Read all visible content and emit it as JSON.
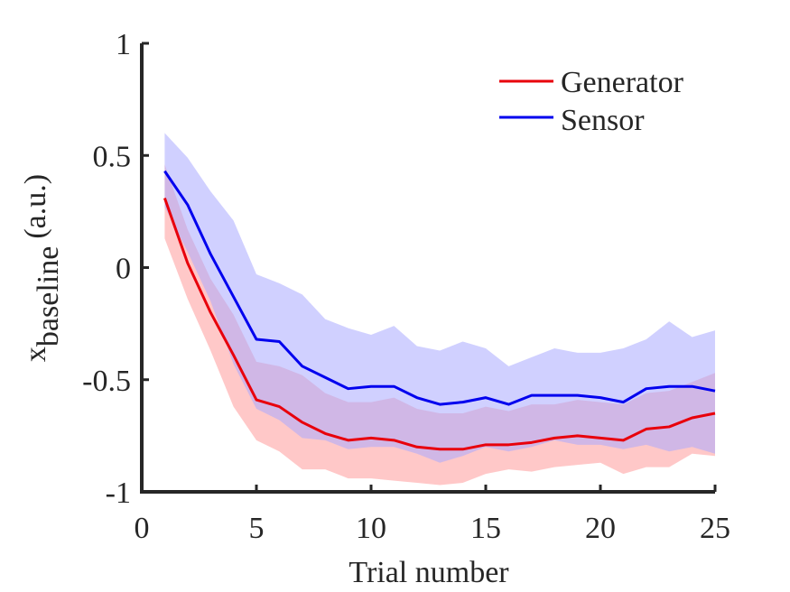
{
  "chart_data": {
    "type": "line",
    "xlabel": "Trial number",
    "ylabel_main": "x",
    "ylabel_sub": "baseline",
    "ylabel_unit": "(a.u.)",
    "xlim": [
      0,
      25
    ],
    "ylim": [
      -1,
      1
    ],
    "xticks": [
      0,
      5,
      10,
      15,
      20,
      25
    ],
    "yticks": [
      -1,
      -0.5,
      0,
      0.5,
      1
    ],
    "xtick_labels": [
      "0",
      "5",
      "10",
      "15",
      "20",
      "25"
    ],
    "ytick_labels": [
      "-1",
      "-0.5",
      "0",
      "0.5",
      "1"
    ],
    "grid": false,
    "legend_position": "top-right",
    "x": [
      1,
      2,
      3,
      4,
      5,
      6,
      7,
      8,
      9,
      10,
      11,
      12,
      13,
      14,
      15,
      16,
      17,
      18,
      19,
      20,
      21,
      22,
      23,
      24,
      25
    ],
    "series": [
      {
        "name": "Generator",
        "color": "#e8000b",
        "band_color": "#ff9a9a",
        "values": [
          0.31,
          0.02,
          -0.2,
          -0.39,
          -0.59,
          -0.62,
          -0.69,
          -0.74,
          -0.77,
          -0.76,
          -0.77,
          -0.8,
          -0.81,
          -0.81,
          -0.79,
          -0.79,
          -0.78,
          -0.76,
          -0.75,
          -0.76,
          -0.77,
          -0.72,
          -0.71,
          -0.67,
          -0.65
        ],
        "upper": [
          0.46,
          0.17,
          -0.05,
          -0.21,
          -0.42,
          -0.44,
          -0.48,
          -0.56,
          -0.6,
          -0.6,
          -0.58,
          -0.63,
          -0.65,
          -0.65,
          -0.62,
          -0.64,
          -0.61,
          -0.61,
          -0.59,
          -0.6,
          -0.61,
          -0.56,
          -0.55,
          -0.51,
          -0.47
        ],
        "lower": [
          0.13,
          -0.14,
          -0.37,
          -0.62,
          -0.77,
          -0.82,
          -0.9,
          -0.9,
          -0.94,
          -0.94,
          -0.95,
          -0.96,
          -0.97,
          -0.96,
          -0.92,
          -0.9,
          -0.91,
          -0.89,
          -0.88,
          -0.87,
          -0.92,
          -0.89,
          -0.89,
          -0.83,
          -0.84
        ]
      },
      {
        "name": "Sensor",
        "color": "#0000ee",
        "band_color": "#aaaaff",
        "values": [
          0.43,
          0.28,
          0.06,
          -0.13,
          -0.32,
          -0.33,
          -0.44,
          -0.49,
          -0.54,
          -0.53,
          -0.53,
          -0.58,
          -0.61,
          -0.6,
          -0.58,
          -0.61,
          -0.57,
          -0.57,
          -0.57,
          -0.58,
          -0.6,
          -0.54,
          -0.53,
          -0.53,
          -0.55
        ],
        "upper": [
          0.6,
          0.49,
          0.34,
          0.21,
          -0.03,
          -0.07,
          -0.12,
          -0.23,
          -0.27,
          -0.3,
          -0.26,
          -0.35,
          -0.37,
          -0.33,
          -0.36,
          -0.44,
          -0.4,
          -0.36,
          -0.38,
          -0.38,
          -0.36,
          -0.32,
          -0.24,
          -0.31,
          -0.28
        ],
        "lower": [
          0.27,
          0.07,
          -0.15,
          -0.43,
          -0.63,
          -0.68,
          -0.76,
          -0.77,
          -0.81,
          -0.8,
          -0.8,
          -0.83,
          -0.87,
          -0.84,
          -0.8,
          -0.82,
          -0.8,
          -0.77,
          -0.79,
          -0.79,
          -0.81,
          -0.79,
          -0.82,
          -0.8,
          -0.83
        ]
      }
    ]
  }
}
